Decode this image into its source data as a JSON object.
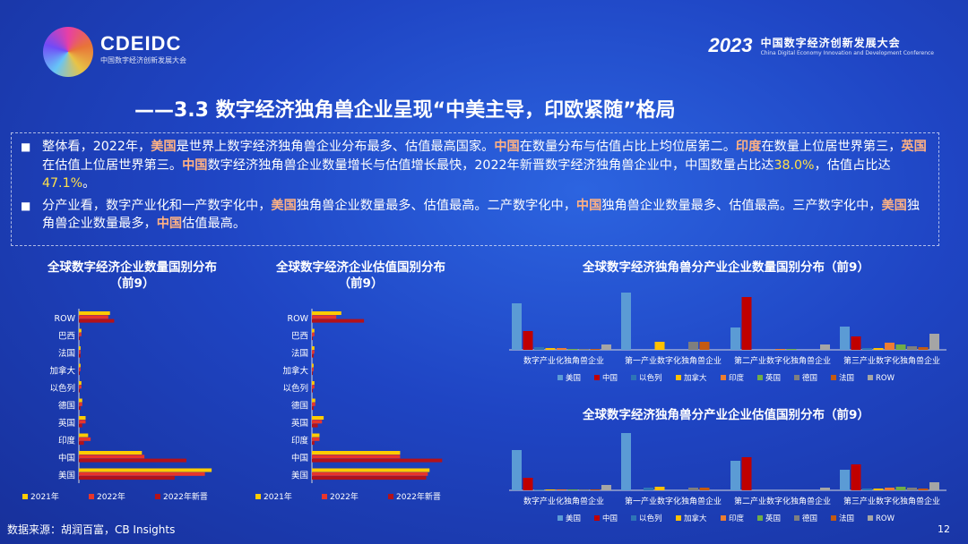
{
  "header": {
    "logo_text": "CDEIDC",
    "logo_sub": "中国数字经济创新发展大会",
    "conf_year": "2023",
    "conf_cn": "中国数字经济创新发展大会",
    "conf_en": "China Digital Economy Innovation and Development Conference"
  },
  "title": "——3.3 数字经济独角兽企业呈现“中美主导，印欧紧随”格局",
  "summary": {
    "bullet": "■",
    "p1": [
      {
        "t": "整体看，2022年，"
      },
      {
        "t": "美国",
        "c": "hl-cn"
      },
      {
        "t": "是世界上数字经济独角兽企业分布最多、估值最高国家。"
      },
      {
        "t": "中国",
        "c": "hl-cn"
      },
      {
        "t": "在数量分布与估值占比上均位居第二。"
      },
      {
        "t": "印度",
        "c": "hl-cn"
      },
      {
        "t": "在数量上位居世界第三，"
      },
      {
        "t": "英国",
        "c": "hl-cn"
      },
      {
        "t": "在估值上位居世界第三。"
      },
      {
        "t": "中国",
        "c": "hl-cn"
      },
      {
        "t": "数字经济独角兽企业数量增长与估值增长最快，2022年新晋数字经济独角兽企业中，中国数量占比达"
      },
      {
        "t": "38.0%",
        "c": "hl-num"
      },
      {
        "t": "，估值占比达"
      },
      {
        "t": "47.1%",
        "c": "hl-num"
      },
      {
        "t": "。"
      }
    ],
    "p2": [
      {
        "t": "分产业看，数字产业化和一产数字化中，"
      },
      {
        "t": "美国",
        "c": "hl-cn"
      },
      {
        "t": "独角兽企业数量最多、估值最高。二产数字化中，"
      },
      {
        "t": "中国",
        "c": "hl-cn"
      },
      {
        "t": "独角兽企业数量最多、估值最高。三产数字化中，"
      },
      {
        "t": "美国",
        "c": "hl-cn"
      },
      {
        "t": "独角兽企业数量最多，"
      },
      {
        "t": "中国",
        "c": "hl-cn"
      },
      {
        "t": "估值最高。"
      }
    ]
  },
  "colors": {
    "y2021": "#ffcc00",
    "y2022": "#e8352b",
    "new2022": "#b3121a"
  },
  "chart_data": [
    {
      "type": "bar",
      "orientation": "horizontal",
      "title": "全球数字经济企业数量国别分布\n（前9）",
      "categories": [
        "ROW",
        "巴西",
        "法国",
        "加拿大",
        "以色列",
        "德国",
        "英国",
        "印度",
        "中国",
        "美国"
      ],
      "series": [
        {
          "name": "2021年",
          "values": [
            37,
            3,
            2,
            2,
            3,
            4,
            8,
            11,
            75,
            158
          ]
        },
        {
          "name": "2022年",
          "values": [
            35,
            3,
            2,
            2,
            3,
            4,
            8,
            14,
            78,
            150
          ]
        },
        {
          "name": "2022年新晋",
          "values": [
            42,
            1,
            2,
            1,
            1,
            2,
            4,
            6,
            128,
            114
          ]
        }
      ]
    },
    {
      "type": "bar",
      "orientation": "horizontal",
      "title": "全球数字经济企业估值国别分布\n（前9）",
      "categories": [
        "ROW",
        "巴西",
        "法国",
        "加拿大",
        "以色列",
        "德国",
        "英国",
        "印度",
        "中国",
        "美国"
      ],
      "series": [
        {
          "name": "2021年",
          "values": [
            35,
            3,
            3,
            2,
            3,
            4,
            14,
            9,
            105,
            140
          ]
        },
        {
          "name": "2022年",
          "values": [
            29,
            3,
            3,
            2,
            3,
            4,
            12,
            9,
            105,
            138
          ]
        },
        {
          "name": "2022年新晋",
          "values": [
            62,
            1,
            2,
            1,
            1,
            2,
            7,
            3,
            155,
            136
          ]
        }
      ]
    },
    {
      "type": "bar",
      "title": "全球数字经济独角兽分产业企业数量国别分布（前9）",
      "categories": [
        "数字产业化独角兽企业",
        "第一产业数字化独角兽企业",
        "第二产业数字化独角兽企业",
        "第三产业数字化独角兽企业"
      ],
      "series": [
        {
          "name": "美国",
          "values": [
            52,
            64,
            25,
            26
          ]
        },
        {
          "name": "中国",
          "values": [
            21,
            0,
            59,
            15
          ]
        },
        {
          "name": "以色列",
          "values": [
            3,
            0,
            0,
            2
          ]
        },
        {
          "name": "加拿大",
          "values": [
            2,
            9,
            0,
            2
          ]
        },
        {
          "name": "印度",
          "values": [
            2,
            0,
            1,
            8
          ]
        },
        {
          "name": "英国",
          "values": [
            1,
            0,
            1,
            6
          ]
        },
        {
          "name": "德国",
          "values": [
            1,
            9,
            0,
            4
          ]
        },
        {
          "name": "法国",
          "values": [
            1,
            9,
            0,
            3
          ]
        },
        {
          "name": "ROW",
          "values": [
            6,
            0,
            6,
            18
          ]
        }
      ]
    },
    {
      "type": "bar",
      "title": "全球数字经济独角兽分产业企业估值国别分布（前9）",
      "categories": [
        "数字产业化独角兽企业",
        "第一产业数字化独角兽企业",
        "第二产业数字化独角兽企业",
        "第三产业数字化独角兽企业"
      ],
      "series": [
        {
          "name": "美国",
          "values": [
            45,
            64,
            33,
            23
          ]
        },
        {
          "name": "中国",
          "values": [
            14,
            0,
            37,
            29
          ]
        },
        {
          "name": "以色列",
          "values": [
            1,
            3,
            0,
            2
          ]
        },
        {
          "name": "加拿大",
          "values": [
            1,
            4,
            0,
            2
          ]
        },
        {
          "name": "印度",
          "values": [
            1,
            0,
            0,
            3
          ]
        },
        {
          "name": "英国",
          "values": [
            1,
            0,
            0,
            4
          ]
        },
        {
          "name": "德国",
          "values": [
            1,
            3,
            0,
            3
          ]
        },
        {
          "name": "法国",
          "values": [
            1,
            3,
            0,
            2
          ]
        },
        {
          "name": "ROW",
          "values": [
            6,
            0,
            3,
            9
          ]
        }
      ]
    }
  ],
  "legend_colors": {
    "美国": "#5b9bd5",
    "中国": "#c00000",
    "以色列": "#2e75b6",
    "加拿大": "#ffc000",
    "印度": "#ed7d31",
    "英国": "#70ad47",
    "德国": "#7f7f7f",
    "法国": "#c55a11",
    "ROW": "#a5a5a5"
  },
  "footer": {
    "source": "数据来源：胡润百富，CB Insights",
    "page": "12"
  }
}
